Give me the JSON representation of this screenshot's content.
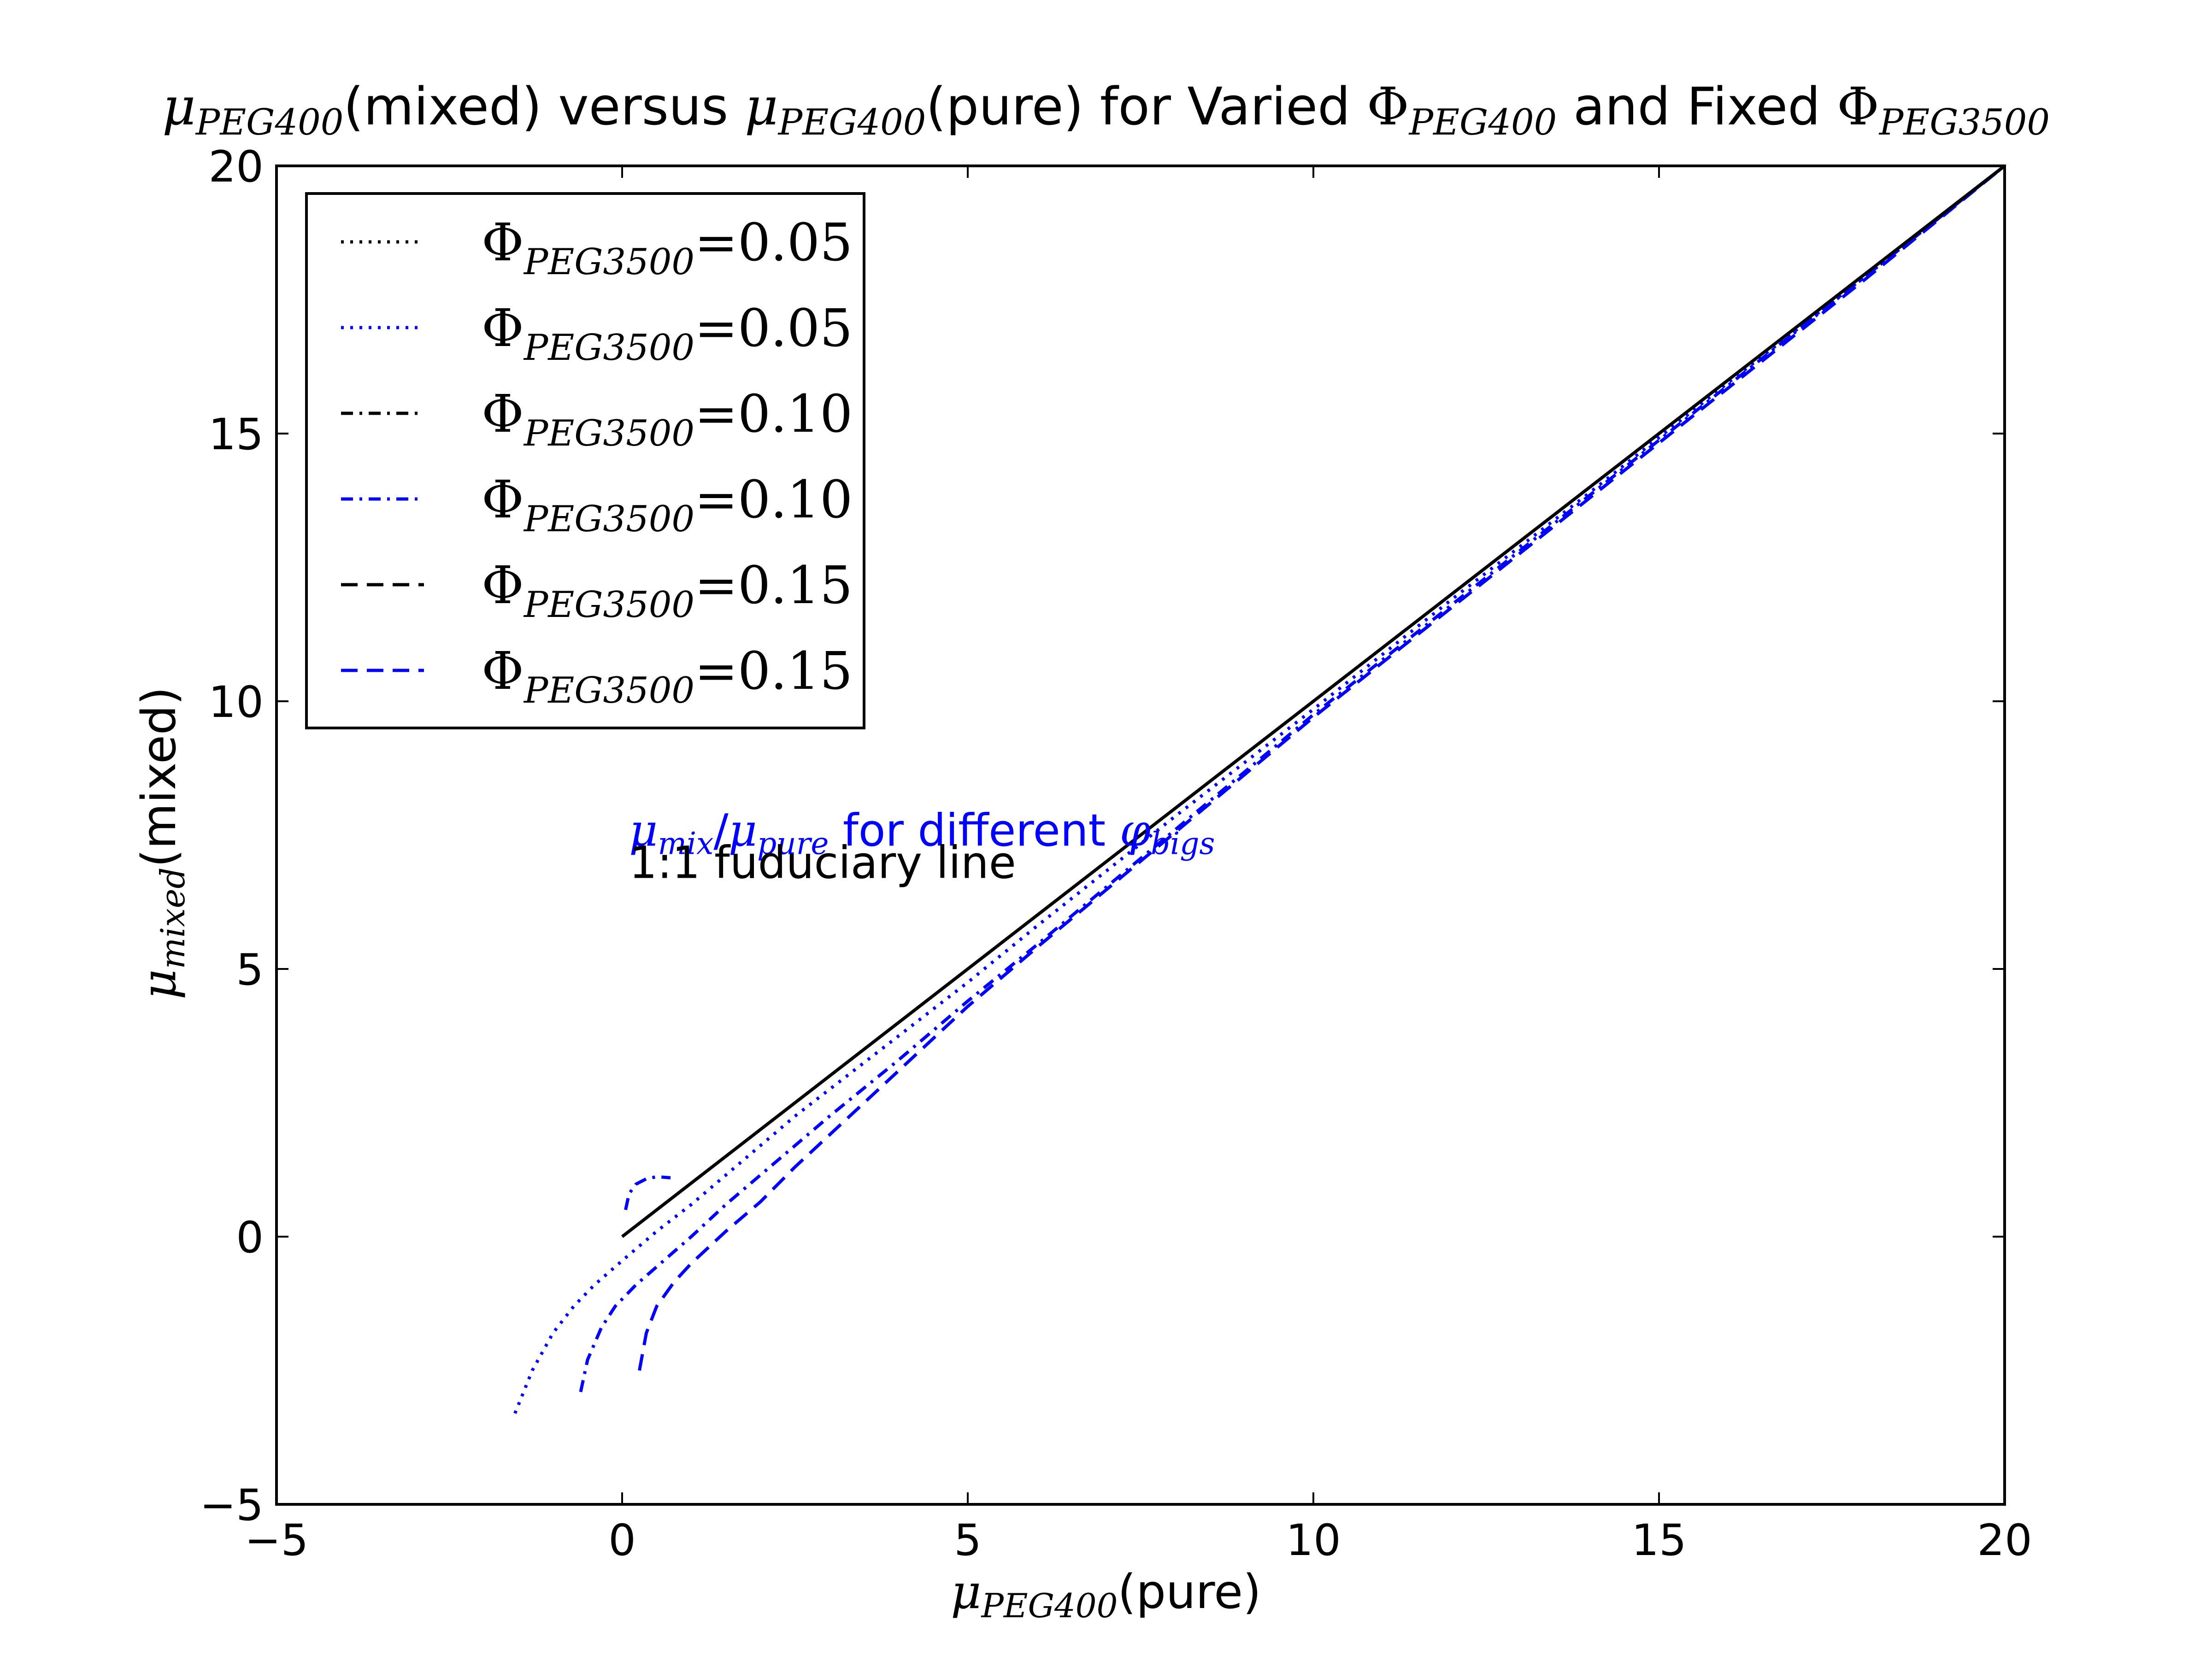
{
  "chart_data": {
    "type": "line",
    "title": {
      "mu": "μ",
      "sub1": "PEG400",
      "part1": "(mixed) versus ",
      "sub2": "PEG400",
      "part2": "(pure) for Varied ",
      "phi": "Φ",
      "sub3": "PEG400",
      "part3": " and Fixed ",
      "sub4": "PEG3500"
    },
    "xlabel": {
      "mu": "μ",
      "sub": "PEG400",
      "text": "(pure)"
    },
    "ylabel": {
      "mu": "μ",
      "sub": "mixed",
      "text": "(mixed)"
    },
    "xlim": [
      -5,
      20
    ],
    "ylim": [
      -5,
      20
    ],
    "xticks": [
      -5,
      0,
      5,
      10,
      15,
      20
    ],
    "yticks": [
      -5,
      0,
      5,
      10,
      15,
      20
    ],
    "xtick_labels": [
      "−5",
      "0",
      "5",
      "10",
      "15",
      "20"
    ],
    "ytick_labels": [
      "−5",
      "0",
      "5",
      "10",
      "15",
      "20"
    ],
    "grid": false,
    "legend_position": "upper-left",
    "legend": [
      {
        "phi": "Φ",
        "sub": "PEG3500",
        "value": "=0.05",
        "color": "#000000",
        "dash": "dotted"
      },
      {
        "phi": "Φ",
        "sub": "PEG3500",
        "value": "=0.05",
        "color": "#0000ff",
        "dash": "dotted"
      },
      {
        "phi": "Φ",
        "sub": "PEG3500",
        "value": "=0.10",
        "color": "#000000",
        "dash": "dashdot"
      },
      {
        "phi": "Φ",
        "sub": "PEG3500",
        "value": "=0.10",
        "color": "#0000ff",
        "dash": "dashdot"
      },
      {
        "phi": "Φ",
        "sub": "PEG3500",
        "value": "=0.15",
        "color": "#000000",
        "dash": "dashed"
      },
      {
        "phi": "Φ",
        "sub": "PEG3500",
        "value": "=0.15",
        "color": "#0000ff",
        "dash": "dashed"
      }
    ],
    "annotations": {
      "blue_label": {
        "mu1": "μ",
        "sub1": "mix",
        "slash": "/",
        "mu2": "μ",
        "sub2": "pure",
        "text": " for different ",
        "phi": "φ",
        "sub3": "bigs",
        "color": "#0000ff",
        "x": 0.1,
        "y": 7.3
      },
      "black_label": {
        "text": "1:1 fuduciary line",
        "color": "#000000",
        "x": 0.1,
        "y": 6.7
      }
    },
    "series": [
      {
        "color": "#0000ff",
        "dash": "dotted",
        "x": [
          -1.55,
          -1.3,
          -1.0,
          -0.7,
          -0.4,
          0.0,
          0.5,
          1.0,
          1.5,
          2.0,
          2.5,
          3.0,
          4.0,
          5.0,
          6.0,
          8.0,
          10.0,
          12.0,
          14.0,
          16.0,
          18.0,
          20.0
        ],
        "y": [
          -3.3,
          -2.5,
          -1.8,
          -1.3,
          -0.9,
          -0.45,
          0.1,
          0.6,
          1.15,
          1.7,
          2.25,
          2.75,
          3.75,
          4.75,
          5.8,
          7.85,
          9.85,
          11.9,
          13.9,
          15.95,
          17.95,
          20.0
        ]
      },
      {
        "color": "#0000ff",
        "dash": "dashdot",
        "x": [
          -0.6,
          -0.5,
          -0.3,
          -0.1,
          0.2,
          0.6,
          1.0,
          1.5,
          2.0,
          2.5,
          3.0,
          4.0,
          5.0,
          6.0,
          8.0,
          10.0,
          12.0,
          14.0,
          16.0,
          18.0,
          20.0
        ],
        "y": [
          -2.9,
          -2.3,
          -1.7,
          -1.3,
          -0.9,
          -0.45,
          0.0,
          0.6,
          1.15,
          1.7,
          2.25,
          3.3,
          4.4,
          5.45,
          7.6,
          9.75,
          11.8,
          13.85,
          15.9,
          17.95,
          20.0
        ]
      },
      {
        "color": "#0000ff",
        "dash": "dashed",
        "x": [
          0.25,
          0.35,
          0.5,
          0.75,
          1.0,
          1.5,
          2.0,
          2.5,
          3.0,
          4.0,
          5.0,
          6.0,
          8.0,
          10.0,
          12.0,
          14.0,
          16.0,
          18.0,
          20.0
        ],
        "y": [
          -2.5,
          -1.8,
          -1.3,
          -0.85,
          -0.5,
          0.1,
          0.65,
          1.3,
          1.9,
          3.1,
          4.3,
          5.4,
          7.55,
          9.7,
          11.75,
          13.8,
          15.85,
          17.9,
          20.0
        ]
      },
      {
        "color": "#0000ff",
        "dash": "dashdot",
        "x": [
          0.05,
          0.1,
          0.2,
          0.35,
          0.5,
          0.7
        ],
        "y": [
          0.5,
          0.8,
          0.98,
          1.08,
          1.12,
          1.1
        ]
      },
      {
        "color": "#000000",
        "dash": "solid",
        "x": [
          0,
          20
        ],
        "y": [
          0,
          20
        ]
      }
    ]
  }
}
